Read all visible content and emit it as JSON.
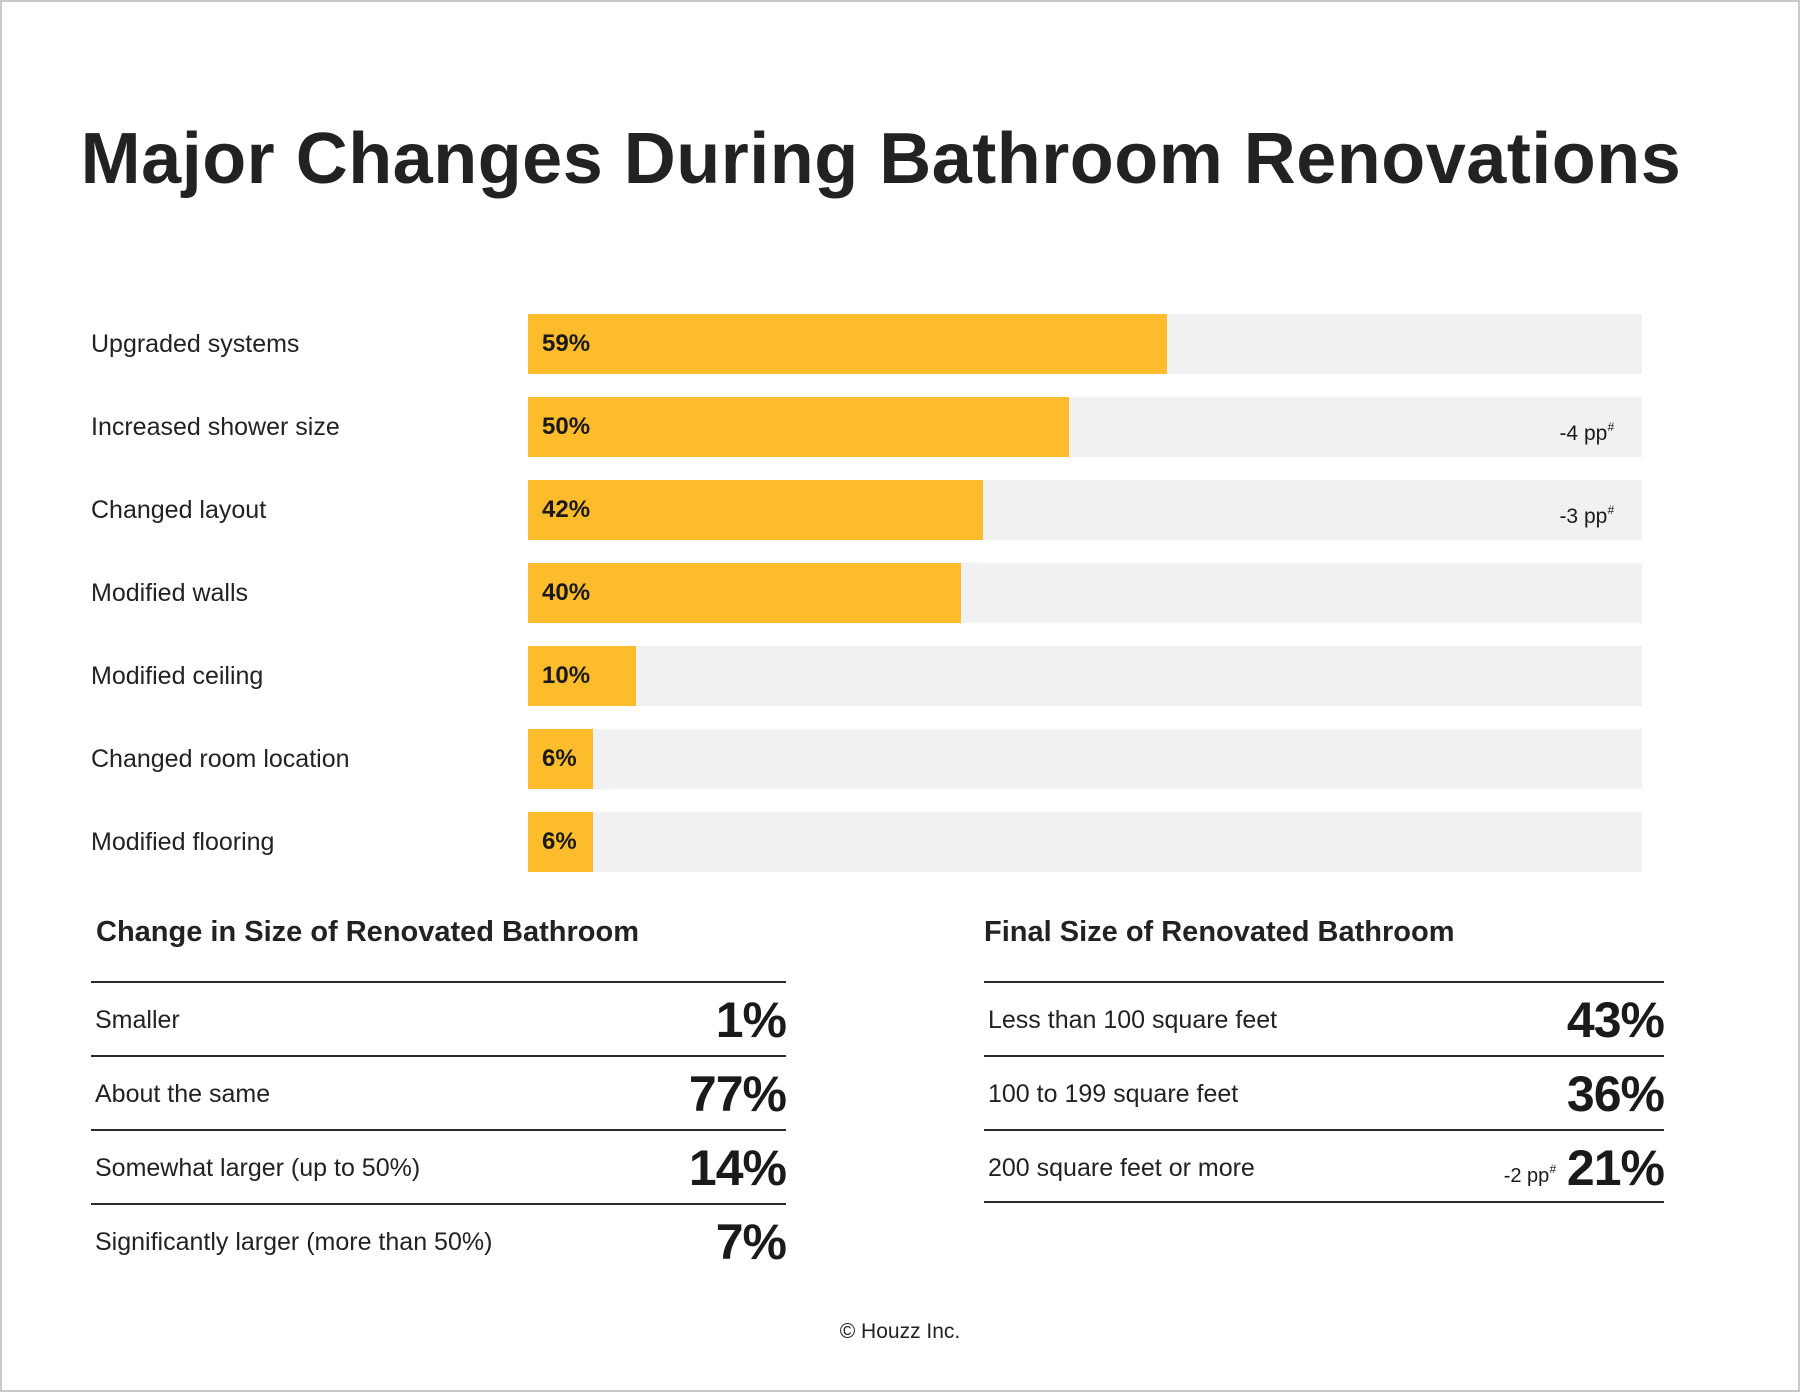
{
  "title": "Major Changes During Bathroom Renovations",
  "colors": {
    "bar": "#fdbc2b",
    "track": "#f1f1f1",
    "text": "#1a1a1a"
  },
  "chart_data": {
    "type": "bar",
    "orientation": "horizontal",
    "title": "Major Changes During Bathroom Renovations",
    "categories": [
      "Upgraded systems",
      "Increased shower size",
      "Changed layout",
      "Modified walls",
      "Modified ceiling",
      "Changed room location",
      "Modified flooring"
    ],
    "values": [
      59,
      50,
      42,
      40,
      10,
      6,
      6
    ],
    "value_labels": [
      "59%",
      "50%",
      "42%",
      "40%",
      "10%",
      "6%",
      "6%"
    ],
    "notes": [
      "",
      "-4 pp",
      "-3 pp",
      "",
      "",
      "",
      ""
    ],
    "note_mark": "#",
    "xlim": [
      0,
      100
    ],
    "grid": false,
    "legend": "none"
  },
  "size_change": {
    "title": "Change in Size of Renovated Bathroom",
    "rows": [
      {
        "label": "Smaller",
        "value": "1%"
      },
      {
        "label": "About the same",
        "value": "77%"
      },
      {
        "label": "Somewhat larger (up to 50%)",
        "value": "14%"
      },
      {
        "label": "Significantly larger (more than 50%)",
        "value": "7%"
      }
    ]
  },
  "final_size": {
    "title": "Final Size of Renovated Bathroom",
    "rows": [
      {
        "label": "Less than 100 square feet",
        "value": "43%",
        "note": ""
      },
      {
        "label": "100 to 199 square feet",
        "value": "36%",
        "note": ""
      },
      {
        "label": "200 square feet or more",
        "value": "21%",
        "note": "-2 pp"
      }
    ]
  },
  "footer": "© Houzz Inc."
}
